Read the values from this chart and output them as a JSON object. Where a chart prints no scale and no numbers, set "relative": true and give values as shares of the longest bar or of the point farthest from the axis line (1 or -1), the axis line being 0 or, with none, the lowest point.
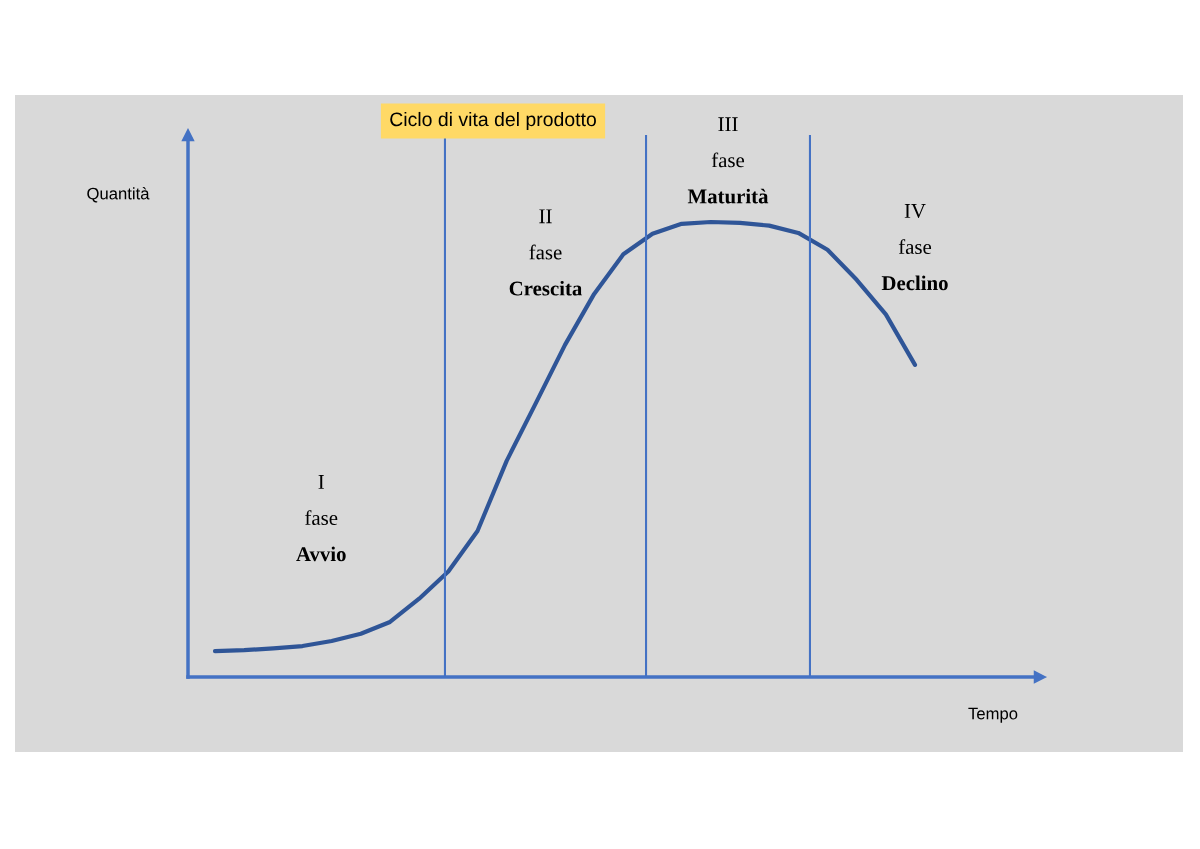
{
  "chart_data": {
    "type": "line",
    "title": "Ciclo di vita del prodotto",
    "xlabel": "Tempo",
    "ylabel": "Quantità",
    "relative": true,
    "legend": false,
    "marker": "none",
    "line_style": "solid",
    "categories": [
      null,
      null,
      null,
      null,
      null,
      null,
      null,
      null,
      null,
      null,
      null,
      null,
      null,
      null,
      null,
      null,
      null,
      null,
      null,
      null,
      null,
      null,
      null,
      null,
      null
    ],
    "series": [
      {
        "color": "#2f5597",
        "values": [
          0.057,
          0.059,
          0.063,
          0.068,
          0.079,
          0.095,
          0.121,
          0.172,
          0.232,
          0.321,
          0.475,
          0.602,
          0.73,
          0.842,
          0.929,
          0.974,
          0.996,
          1,
          0.998,
          0.992,
          0.976,
          0.939,
          0.873,
          0.797,
          0.686
        ]
      }
    ],
    "annotations": [
      "I\nfase\nAvvio",
      "II\nfase\nCrescita",
      "III\nfase\nMaturità",
      "IV\nfase\nDeclino"
    ]
  }
}
